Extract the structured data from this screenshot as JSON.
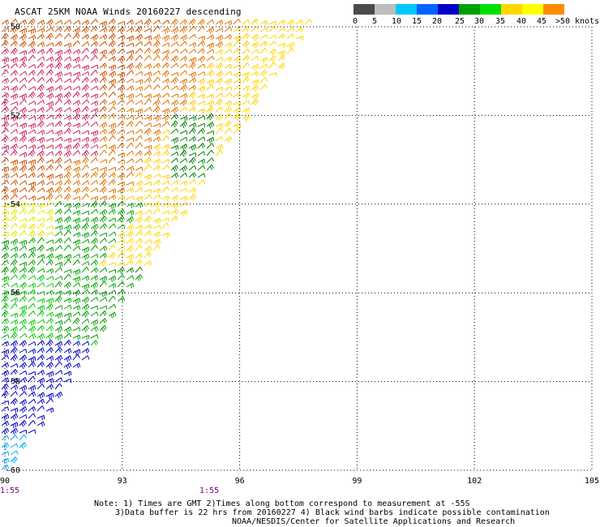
{
  "title": "ASCAT 25KM NOAA Winds 20160227 descending",
  "legend": {
    "colors": [
      "#4a4a4a",
      "#bdbdbd",
      "#00c8ff",
      "#0064ff",
      "#0000c8",
      "#00a000",
      "#00e000",
      "#ffd700",
      "#ffff00",
      "#ff8c00",
      "#e65a00",
      "#ff0000",
      "#c80040",
      "#8b4513",
      "#c07050",
      "#ff00ff",
      "#c000c0",
      "#8000c0",
      "#4b0082"
    ],
    "labels": [
      "0",
      "5",
      "10",
      "15",
      "20",
      "25",
      "30",
      "35",
      "40",
      "45",
      ">50 knots"
    ]
  },
  "map": {
    "lon_labels": [
      "90",
      "93",
      "96",
      "99",
      "102",
      "105"
    ],
    "lat_labels": [
      "-50",
      "-52",
      "-54",
      "-56",
      "-58",
      "-60"
    ],
    "time_labels": [
      "1:55",
      "1:55"
    ],
    "time_color": "#800080"
  },
  "notes": {
    "line1": "Note: 1) Times are GMT 2)Times along bottom correspond to measurement at -55S",
    "line2": "3)Data buffer is 22 hrs from 20160227 4) Black wind barbs indicate possible contamination",
    "line3": "NOAA/NESDIS/Center for Satellite Applications and Research"
  }
}
